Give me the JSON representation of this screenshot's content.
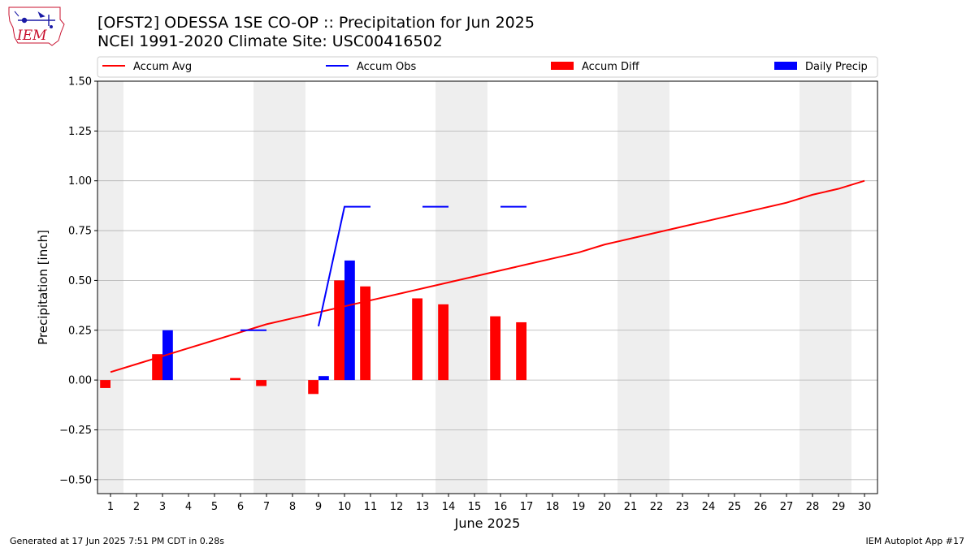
{
  "header": {
    "title_line1": "[OFST2] ODESSA 1SE CO-OP :: Precipitation for Jun 2025",
    "title_line2": "NCEI 1991-2020 Climate Site: USC00416502"
  },
  "logo": {
    "text": "IEM",
    "color": "#c8102e"
  },
  "footer": {
    "left": "Generated at 17 Jun 2025 7:51 PM CDT in 0.28s",
    "right": "IEM Autoplot App #17"
  },
  "colors": {
    "avg": "#ff0000",
    "obs": "#0000ff",
    "diff": "#ff0000",
    "daily": "#0000ff",
    "weekend": "#eeeeee",
    "grid": "#b0b0b0"
  },
  "chart_data": {
    "type": "bar",
    "xlabel": "June 2025",
    "ylabel": "Precipitation [inch]",
    "xlim": [
      0.5,
      30.5
    ],
    "ylim": [
      -0.57,
      1.5
    ],
    "grid": true,
    "legend_position": "top",
    "x_ticks": [
      1,
      2,
      3,
      4,
      5,
      6,
      7,
      8,
      9,
      10,
      11,
      12,
      13,
      14,
      15,
      16,
      17,
      18,
      19,
      20,
      21,
      22,
      23,
      24,
      25,
      26,
      27,
      28,
      29,
      30
    ],
    "y_ticks": [
      -0.5,
      -0.25,
      0.0,
      0.25,
      0.5,
      0.75,
      1.0,
      1.25,
      1.5
    ],
    "y_tick_labels": [
      "−0.50",
      "−0.25",
      "0.00",
      "0.25",
      "0.50",
      "0.75",
      "1.00",
      "1.25",
      "1.50"
    ],
    "weekend_shading": [
      [
        0.5,
        1.5
      ],
      [
        6.5,
        8.5
      ],
      [
        13.5,
        15.5
      ],
      [
        20.5,
        22.5
      ],
      [
        27.5,
        29.5
      ]
    ],
    "legend": [
      "Accum Avg",
      "Accum Obs",
      "Accum Diff",
      "Daily Precip"
    ],
    "accum_avg": {
      "name": "Accum Avg",
      "x": [
        1,
        2,
        3,
        4,
        5,
        6,
        7,
        8,
        9,
        10,
        11,
        12,
        13,
        14,
        15,
        16,
        17,
        18,
        19,
        20,
        21,
        22,
        23,
        24,
        25,
        26,
        27,
        28,
        29,
        30
      ],
      "y": [
        0.04,
        0.08,
        0.12,
        0.16,
        0.2,
        0.24,
        0.28,
        0.31,
        0.34,
        0.37,
        0.4,
        0.43,
        0.46,
        0.49,
        0.52,
        0.55,
        0.58,
        0.61,
        0.64,
        0.68,
        0.71,
        0.74,
        0.77,
        0.8,
        0.83,
        0.86,
        0.89,
        0.93,
        0.96,
        1.0
      ]
    },
    "accum_obs": {
      "name": "Accum Obs",
      "segments": [
        {
          "x": [
            6,
            7
          ],
          "y": [
            0.25,
            0.25
          ]
        },
        {
          "x": [
            9,
            10,
            11
          ],
          "y": [
            0.27,
            0.87,
            0.87
          ]
        },
        {
          "x": [
            13,
            14
          ],
          "y": [
            0.87,
            0.87
          ]
        },
        {
          "x": [
            16,
            17
          ],
          "y": [
            0.87,
            0.87
          ]
        }
      ]
    },
    "accum_diff": {
      "name": "Accum Diff",
      "x": [
        1,
        3,
        6,
        7,
        9,
        10,
        11,
        13,
        14,
        16,
        17
      ],
      "y": [
        -0.04,
        0.13,
        0.01,
        -0.03,
        -0.07,
        0.5,
        0.47,
        0.41,
        0.38,
        0.32,
        0.29
      ]
    },
    "daily_precip": {
      "name": "Daily Precip",
      "x": [
        3,
        9,
        10
      ],
      "y": [
        0.25,
        0.02,
        0.6
      ]
    }
  }
}
